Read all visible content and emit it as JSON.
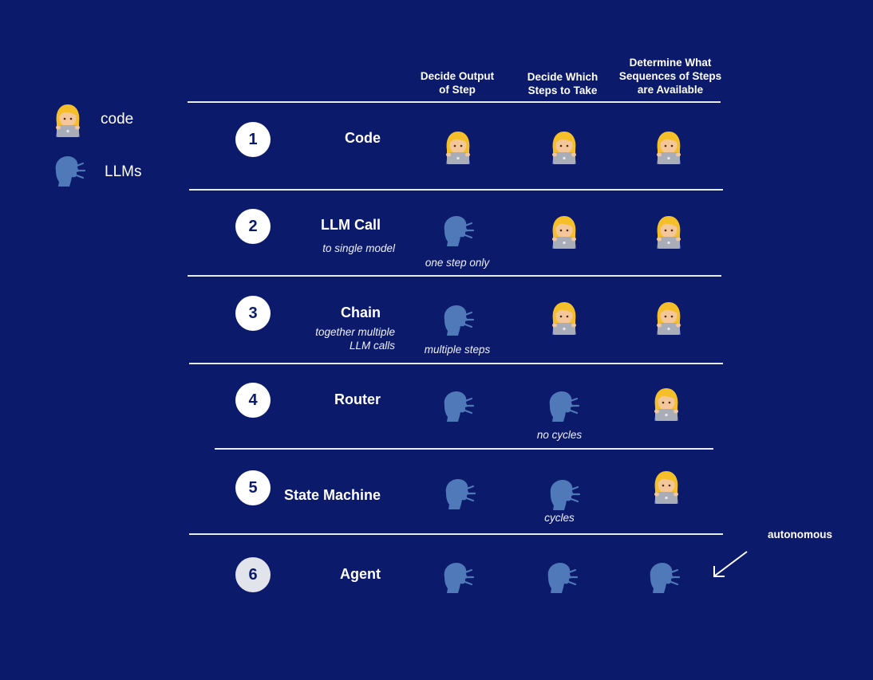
{
  "legend": [
    {
      "label": "code",
      "icon": "technologist-icon"
    },
    {
      "label": "LLMs",
      "icon": "speaking-head-icon"
    }
  ],
  "columns": [
    [
      "Decide Output",
      "of Step"
    ],
    [
      "Decide Which",
      "Steps to Take"
    ],
    [
      "Determine What",
      "Sequences of Steps",
      "are Available"
    ]
  ],
  "rows": [
    {
      "number": "1",
      "title": "Code",
      "subtitle": [],
      "cells": [
        "code",
        "code",
        "code"
      ],
      "notes": [
        "",
        "",
        ""
      ]
    },
    {
      "number": "2",
      "title": "LLM Call",
      "subtitle": [
        "to single model"
      ],
      "cells": [
        "llm",
        "code",
        "code"
      ],
      "notes": [
        "one step only",
        "",
        ""
      ]
    },
    {
      "number": "3",
      "title": "Chain",
      "subtitle": [
        "together multiple",
        "LLM calls"
      ],
      "cells": [
        "llm",
        "code",
        "code"
      ],
      "notes": [
        "multiple steps",
        "",
        ""
      ]
    },
    {
      "number": "4",
      "title": "Router",
      "subtitle": [],
      "cells": [
        "llm",
        "llm",
        "code"
      ],
      "notes": [
        "",
        "no cycles",
        ""
      ]
    },
    {
      "number": "5",
      "title": "State Machine",
      "subtitle": [],
      "cells": [
        "llm",
        "llm",
        "code"
      ],
      "notes": [
        "",
        "cycles",
        ""
      ]
    },
    {
      "number": "6",
      "title": "Agent",
      "subtitle": [],
      "cells": [
        "llm",
        "llm",
        "llm"
      ],
      "notes": [
        "",
        "",
        ""
      ]
    }
  ],
  "autonomous_label": "autonomous",
  "colors": {
    "background": "#0b1a6b",
    "text": "#ffffff",
    "llm_icon": "#4f79b8",
    "code_hair": "#f5bf2a",
    "code_skin": "#f3c79a",
    "laptop": "#a9adb8"
  }
}
